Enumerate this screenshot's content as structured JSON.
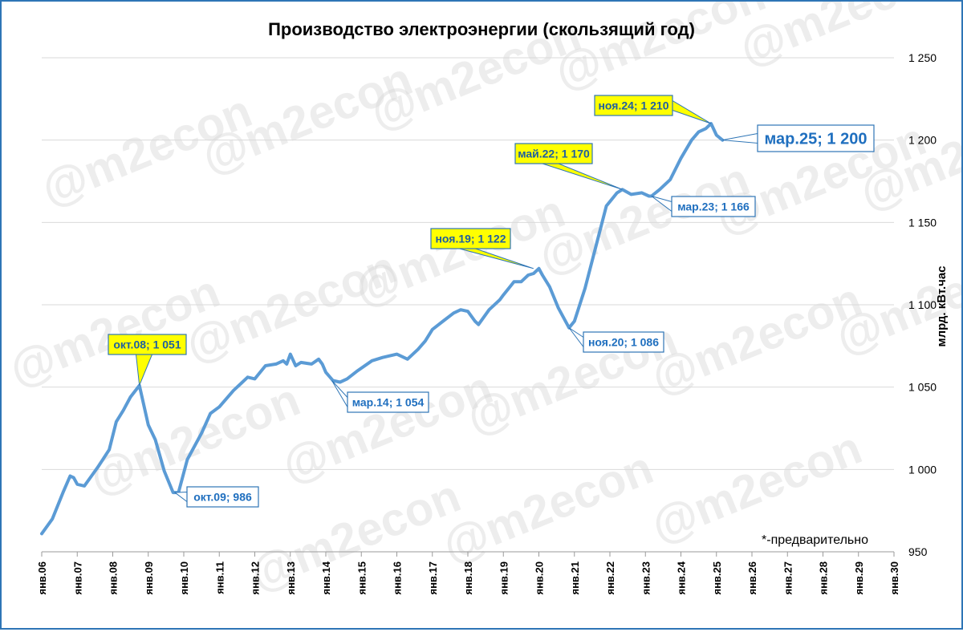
{
  "chart_data": {
    "type": "line",
    "title": "Производство электроэнергии (скользящий год)",
    "ylabel": "млрд. кВт.час",
    "xlabel": "",
    "ylim": [
      950,
      1250
    ],
    "xlim": [
      2006,
      2030
    ],
    "yticks": [
      950,
      1000,
      1050,
      1100,
      1150,
      1200,
      1250
    ],
    "ytick_labels": [
      "950",
      "1 000",
      "1 050",
      "1 100",
      "1 150",
      "1 200",
      "1 250"
    ],
    "xticks": [
      2006,
      2007,
      2008,
      2009,
      2010,
      2011,
      2012,
      2013,
      2014,
      2015,
      2016,
      2017,
      2018,
      2019,
      2020,
      2021,
      2022,
      2023,
      2024,
      2025,
      2026,
      2027,
      2028,
      2029,
      2030
    ],
    "xtick_labels": [
      "янв.06",
      "янв.07",
      "янв.08",
      "янв.09",
      "янв.10",
      "янв.11",
      "янв.12",
      "янв.13",
      "янв.14",
      "янв.15",
      "янв.16",
      "янв.17",
      "янв.18",
      "янв.19",
      "янв.20",
      "янв.21",
      "янв.22",
      "янв.23",
      "янв.24",
      "янв.25",
      "янв.26",
      "янв.27",
      "янв.28",
      "янв.29",
      "янв.30"
    ],
    "grid": true,
    "legend": "none",
    "line_color": "#5b9bd5",
    "series": [
      {
        "x": [
          2006.0,
          2006.3,
          2006.6,
          2006.8,
          2006.9,
          2007.0,
          2007.2,
          2007.4,
          2007.6,
          2007.9,
          2008.1,
          2008.3,
          2008.5,
          2008.75,
          2009.0,
          2009.2,
          2009.45,
          2009.7,
          2009.85,
          2010.1,
          2010.5,
          2010.75,
          2011.0,
          2011.4,
          2011.6,
          2011.8,
          2012.0,
          2012.3,
          2012.6,
          2012.8,
          2012.9,
          2013.0,
          2013.15,
          2013.3,
          2013.6,
          2013.8,
          2013.9,
          2014.0,
          2014.2,
          2014.4,
          2014.6,
          2014.9,
          2015.3,
          2015.6,
          2016.0,
          2016.3,
          2016.6,
          2016.8,
          2017.0,
          2017.3,
          2017.6,
          2017.8,
          2018.0,
          2018.2,
          2018.3,
          2018.6,
          2018.9,
          2019.0,
          2019.3,
          2019.5,
          2019.7,
          2019.85,
          2020.0,
          2020.1,
          2020.3,
          2020.55,
          2020.85,
          2021.0,
          2021.3,
          2021.6,
          2021.9,
          2022.2,
          2022.35,
          2022.6,
          2022.9,
          2023.1,
          2023.17,
          2023.4,
          2023.7,
          2024.0,
          2024.3,
          2024.5,
          2024.7,
          2024.85,
          2025.0,
          2025.17
        ],
        "values": [
          961,
          970,
          986,
          996,
          995,
          991,
          990,
          996,
          1002,
          1012,
          1029,
          1036,
          1044,
          1051,
          1027,
          1018,
          999,
          986,
          986,
          1006,
          1022,
          1034,
          1038,
          1048,
          1052,
          1056,
          1055,
          1063,
          1064,
          1066,
          1064,
          1070,
          1063,
          1065,
          1064,
          1067,
          1064,
          1059,
          1054,
          1053,
          1055,
          1060,
          1066,
          1068,
          1070,
          1067,
          1073,
          1078,
          1085,
          1090,
          1095,
          1097,
          1096,
          1090,
          1088,
          1097,
          1103,
          1106,
          1114,
          1114,
          1118,
          1119,
          1122,
          1118,
          1111,
          1098,
          1086,
          1090,
          1110,
          1135,
          1160,
          1168,
          1170,
          1167,
          1168,
          1166,
          1166,
          1170,
          1176,
          1189,
          1200,
          1205,
          1207,
          1210,
          1203,
          1200
        ]
      }
    ],
    "annotations": [
      {
        "text": "окт.08; 1 051",
        "x": 2008.75,
        "y": 1051,
        "style": "callout-yellow"
      },
      {
        "text": "окт.09; 986",
        "x": 2009.75,
        "y": 986,
        "style": "callout-white"
      },
      {
        "text": "мар.14; 1 054",
        "x": 2014.17,
        "y": 1054,
        "style": "callout-white"
      },
      {
        "text": "ноя.19; 1 122",
        "x": 2019.85,
        "y": 1122,
        "style": "callout-yellow"
      },
      {
        "text": "ноя.20; 1 086",
        "x": 2020.85,
        "y": 1086,
        "style": "callout-white"
      },
      {
        "text": "май.22; 1 170",
        "x": 2022.35,
        "y": 1170,
        "style": "callout-yellow"
      },
      {
        "text": "мар.23; 1 166",
        "x": 2023.17,
        "y": 1166,
        "style": "callout-white"
      },
      {
        "text": "ноя.24; 1 210",
        "x": 2024.85,
        "y": 1210,
        "style": "callout-yellow"
      },
      {
        "text": "мар.25; 1 200",
        "x": 2025.17,
        "y": 1200,
        "style": "callout-white-large"
      }
    ],
    "footnote": "*-предварительно",
    "watermark": "@m2econ"
  }
}
